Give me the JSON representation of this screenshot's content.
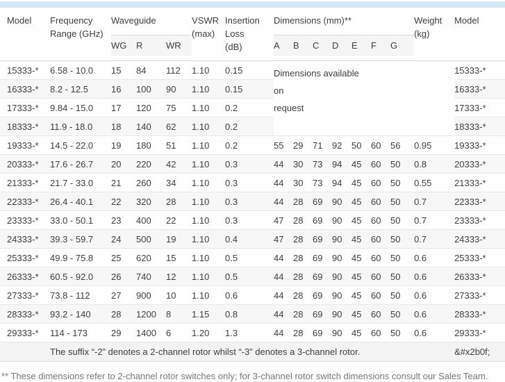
{
  "table": {
    "header": {
      "model": "Model",
      "frequency": "Frequency\nRange (GHz)",
      "waveguide": "Waveguide",
      "wg": "WG",
      "r": "R",
      "wr": "WR",
      "vswr": "VSWR\n(max)",
      "insertion_loss": "Insertion\nLoss\n(dB)",
      "dimensions": "Dimensions (mm)**",
      "dim_cols": [
        "A",
        "B",
        "C",
        "D",
        "E",
        "F",
        "G"
      ],
      "weight": "Weight\n(kg)",
      "model_right": "Model"
    },
    "merged_note": "Dimensions available\non\nrequest",
    "rows": [
      {
        "model": "15333-*",
        "freq": "6.58 - 10.0",
        "wg": "15",
        "r": "84",
        "wr": "112",
        "vswr": "1.10",
        "loss": "0.15",
        "dims": null,
        "weight": ""
      },
      {
        "model": "16333-*",
        "freq": "8.2 - 12.5",
        "wg": "16",
        "r": "100",
        "wr": "90",
        "vswr": "1.10",
        "loss": "0.15",
        "dims": null,
        "weight": ""
      },
      {
        "model": "17333-*",
        "freq": "9.84 - 15.0",
        "wg": "17",
        "r": "120",
        "wr": "75",
        "vswr": "1.10",
        "loss": "0.2",
        "dims": null,
        "weight": ""
      },
      {
        "model": "18333-*",
        "freq": "11.9 - 18.0",
        "wg": "18",
        "r": "140",
        "wr": "62",
        "vswr": "1.10",
        "loss": "0.2",
        "dims": null,
        "weight": ""
      },
      {
        "model": "19333-*",
        "freq": "14.5 - 22.0",
        "wg": "19",
        "r": "180",
        "wr": "51",
        "vswr": "1.10",
        "loss": "0.2",
        "dims": [
          "55",
          "29",
          "71",
          "92",
          "50",
          "60",
          "56"
        ],
        "weight": "0.95"
      },
      {
        "model": "20333-*",
        "freq": "17.6 - 26.7",
        "wg": "20",
        "r": "220",
        "wr": "42",
        "vswr": "1.10",
        "loss": "0.3",
        "dims": [
          "44",
          "30",
          "73",
          "94",
          "45",
          "60",
          "50"
        ],
        "weight": "0.8"
      },
      {
        "model": "21333-*",
        "freq": "21.7 - 33.0",
        "wg": "21",
        "r": "260",
        "wr": "34",
        "vswr": "1.10",
        "loss": "0.3",
        "dims": [
          "44",
          "30",
          "73",
          "94",
          "45",
          "60",
          "50"
        ],
        "weight": "0.55"
      },
      {
        "model": "22333-*",
        "freq": "26.4 - 40.1",
        "wg": "22",
        "r": "320",
        "wr": "28",
        "vswr": "1.10",
        "loss": "0.3",
        "dims": [
          "44",
          "28",
          "69",
          "90",
          "45",
          "60",
          "50"
        ],
        "weight": "0.7"
      },
      {
        "model": "23333-*",
        "freq": "33.0 - 50.1",
        "wg": "23",
        "r": "400",
        "wr": "22",
        "vswr": "1.10",
        "loss": "0.3",
        "dims": [
          "47",
          "28",
          "69",
          "90",
          "45",
          "60",
          "50"
        ],
        "weight": "0.7"
      },
      {
        "model": "24333-*",
        "freq": "39.3 - 59.7",
        "wg": "24",
        "r": "500",
        "wr": "19",
        "vswr": "1.10",
        "loss": "0.4",
        "dims": [
          "47",
          "28",
          "69",
          "90",
          "45",
          "60",
          "50"
        ],
        "weight": "0.7"
      },
      {
        "model": "25333-*",
        "freq": "49.9 - 75.8",
        "wg": "25",
        "r": "620",
        "wr": "15",
        "vswr": "1.10",
        "loss": "0.5",
        "dims": [
          "44",
          "28",
          "69",
          "90",
          "45",
          "60",
          "50"
        ],
        "weight": "0.6"
      },
      {
        "model": "26333-*",
        "freq": "60.5 - 92.0",
        "wg": "26",
        "r": "740",
        "wr": "12",
        "vswr": "1.10",
        "loss": "0.5",
        "dims": [
          "44",
          "28",
          "69",
          "90",
          "45",
          "60",
          "50"
        ],
        "weight": "0.6"
      },
      {
        "model": "27333-*",
        "freq": "73.8 - 112",
        "wg": "27",
        "r": "900",
        "wr": "10",
        "vswr": "1.10",
        "loss": "0.6",
        "dims": [
          "44",
          "28",
          "69",
          "90",
          "45",
          "60",
          "50"
        ],
        "weight": "0.6"
      },
      {
        "model": "28333-*",
        "freq": "93.2 - 140",
        "wg": "28",
        "r": "1200",
        "wr": "8",
        "vswr": "1.15",
        "loss": "0.8",
        "dims": [
          "44",
          "28",
          "69",
          "90",
          "45",
          "60",
          "50"
        ],
        "weight": "0.6"
      },
      {
        "model": "29333-*",
        "freq": "114 - 173",
        "wg": "29",
        "r": "1400",
        "wr": "6",
        "vswr": "1.20",
        "loss": "1.3",
        "dims": [
          "44",
          "28",
          "69",
          "90",
          "45",
          "60",
          "50"
        ],
        "weight": "0.6"
      }
    ],
    "footer_note": "The suffix “-2” denotes a 2-channel rotor whilst “-3” denotes a 3-channel rotor.",
    "footer_symbol": "&#x2b0f;"
  },
  "footnote": "** These dimensions refer to 2-channel rotor switches only; for 3-channel rotor switch dimensions consult our Sales Team.",
  "colors": {
    "top_band": "#d6e8f3",
    "stripe": "#f7f7f7",
    "subheader_bg": "#f5f5f5",
    "footer_row_bg": "#f3f3f3",
    "text": "#3d3d3d",
    "footnote_text": "#767676"
  }
}
